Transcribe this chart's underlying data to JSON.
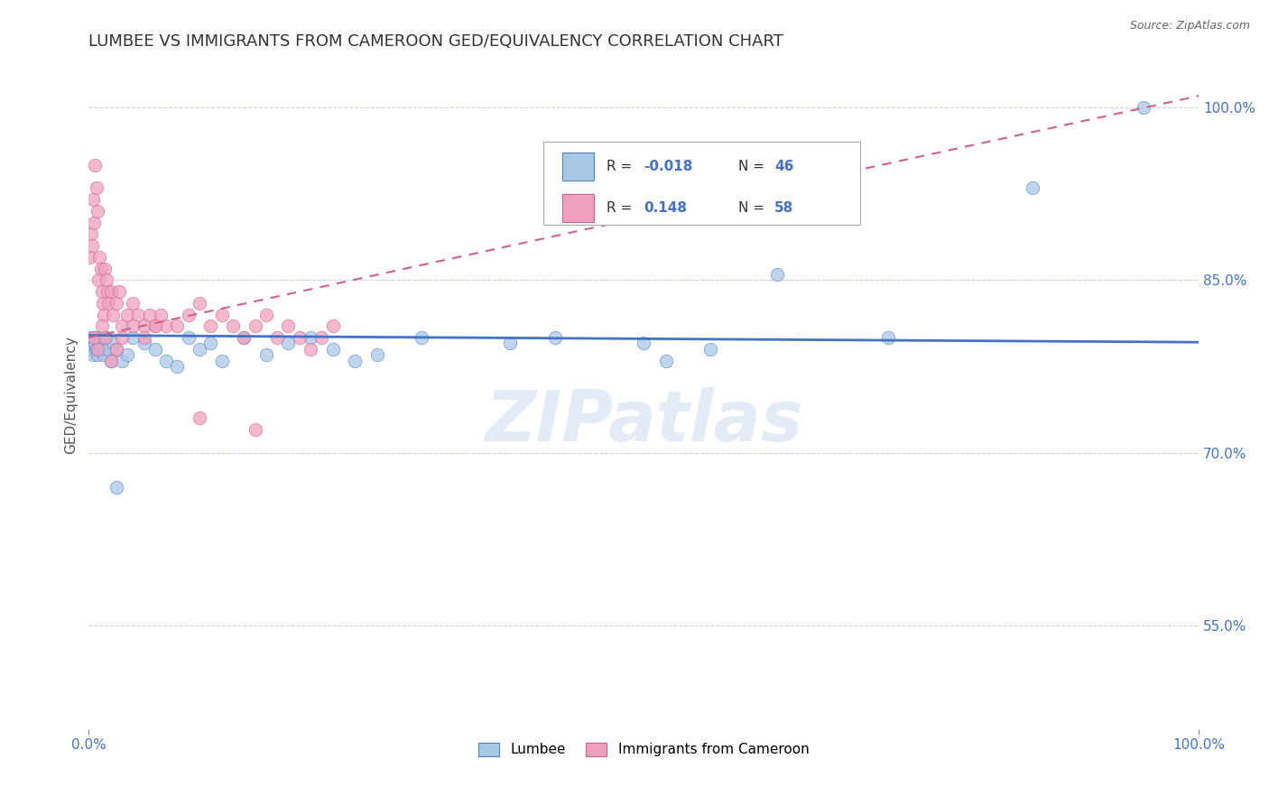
{
  "title": "LUMBEE VS IMMIGRANTS FROM CAMEROON GED/EQUIVALENCY CORRELATION CHART",
  "source": "Source: ZipAtlas.com",
  "ylabel": "GED/Equivalency",
  "watermark": "ZIPatlas",
  "xlim": [
    0.0,
    1.0
  ],
  "ylim": [
    0.46,
    1.04
  ],
  "ytick_vals": [
    0.55,
    0.7,
    0.85,
    1.0
  ],
  "ytick_labels": [
    "55.0%",
    "70.0%",
    "85.0%",
    "100.0%"
  ],
  "r_lumbee": -0.018,
  "n_lumbee": 46,
  "r_cameroon": 0.148,
  "n_cameroon": 58,
  "lumbee_color": "#a8c8e8",
  "cameroon_color": "#f0a0be",
  "lumbee_edge_color": "#5080c0",
  "cameroon_edge_color": "#d06090",
  "lumbee_line_color": "#4472c4",
  "cameroon_line_color": "#d06090",
  "lumbee_x": [
    0.001,
    0.002,
    0.003,
    0.004,
    0.005,
    0.006,
    0.007,
    0.008,
    0.009,
    0.01,
    0.012,
    0.014,
    0.016,
    0.018,
    0.02,
    0.022,
    0.025,
    0.03,
    0.035,
    0.04,
    0.05,
    0.06,
    0.07,
    0.08,
    0.09,
    0.1,
    0.11,
    0.12,
    0.14,
    0.16,
    0.18,
    0.2,
    0.22,
    0.24,
    0.26,
    0.3,
    0.38,
    0.42,
    0.5,
    0.52,
    0.56,
    0.62,
    0.72,
    0.85,
    0.95,
    0.025
  ],
  "lumbee_y": [
    0.8,
    0.79,
    0.795,
    0.785,
    0.8,
    0.795,
    0.79,
    0.785,
    0.8,
    0.795,
    0.79,
    0.785,
    0.8,
    0.79,
    0.78,
    0.795,
    0.79,
    0.78,
    0.785,
    0.8,
    0.795,
    0.79,
    0.78,
    0.775,
    0.8,
    0.79,
    0.795,
    0.78,
    0.8,
    0.785,
    0.795,
    0.8,
    0.79,
    0.78,
    0.785,
    0.8,
    0.795,
    0.8,
    0.795,
    0.78,
    0.79,
    0.855,
    0.8,
    0.93,
    1.0,
    0.67
  ],
  "cameroon_x": [
    0.001,
    0.002,
    0.003,
    0.004,
    0.005,
    0.006,
    0.007,
    0.008,
    0.009,
    0.01,
    0.011,
    0.012,
    0.013,
    0.014,
    0.015,
    0.016,
    0.017,
    0.018,
    0.02,
    0.022,
    0.025,
    0.028,
    0.03,
    0.035,
    0.04,
    0.045,
    0.05,
    0.055,
    0.06,
    0.065,
    0.07,
    0.08,
    0.09,
    0.1,
    0.11,
    0.12,
    0.13,
    0.14,
    0.15,
    0.16,
    0.17,
    0.18,
    0.19,
    0.2,
    0.21,
    0.22,
    0.005,
    0.008,
    0.012,
    0.015,
    0.02,
    0.025,
    0.03,
    0.04,
    0.05,
    0.06,
    0.1,
    0.15
  ],
  "cameroon_y": [
    0.87,
    0.89,
    0.88,
    0.92,
    0.9,
    0.95,
    0.93,
    0.91,
    0.85,
    0.87,
    0.86,
    0.84,
    0.83,
    0.82,
    0.86,
    0.85,
    0.84,
    0.83,
    0.84,
    0.82,
    0.83,
    0.84,
    0.81,
    0.82,
    0.83,
    0.82,
    0.81,
    0.82,
    0.81,
    0.82,
    0.81,
    0.81,
    0.82,
    0.83,
    0.81,
    0.82,
    0.81,
    0.8,
    0.81,
    0.82,
    0.8,
    0.81,
    0.8,
    0.79,
    0.8,
    0.81,
    0.8,
    0.79,
    0.81,
    0.8,
    0.78,
    0.79,
    0.8,
    0.81,
    0.8,
    0.81,
    0.73,
    0.72
  ]
}
